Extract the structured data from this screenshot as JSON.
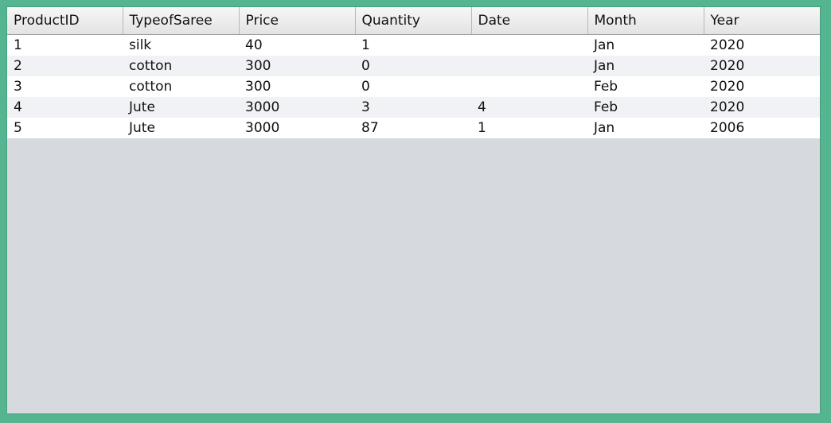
{
  "table": {
    "columns": [
      "ProductID",
      "TypeofSaree",
      "Price",
      "Quantity",
      "Date",
      "Month",
      "Year"
    ],
    "rows": [
      [
        "1",
        "silk",
        "40",
        "1",
        "",
        "Jan",
        "2020"
      ],
      [
        "2",
        "cotton",
        "300",
        "0",
        "",
        "Jan",
        "2020"
      ],
      [
        "3",
        "cotton",
        "300",
        "0",
        "",
        "Feb",
        "2020"
      ],
      [
        "4",
        "Jute",
        "3000",
        "3",
        "4",
        "Feb",
        "2020"
      ],
      [
        "5",
        "Jute",
        "3000",
        "87",
        "1",
        "Jan",
        "2006"
      ]
    ]
  },
  "colors": {
    "frame_border": "#55b590",
    "empty_area": "#d6d9de",
    "row_alt": "#f1f2f5"
  }
}
